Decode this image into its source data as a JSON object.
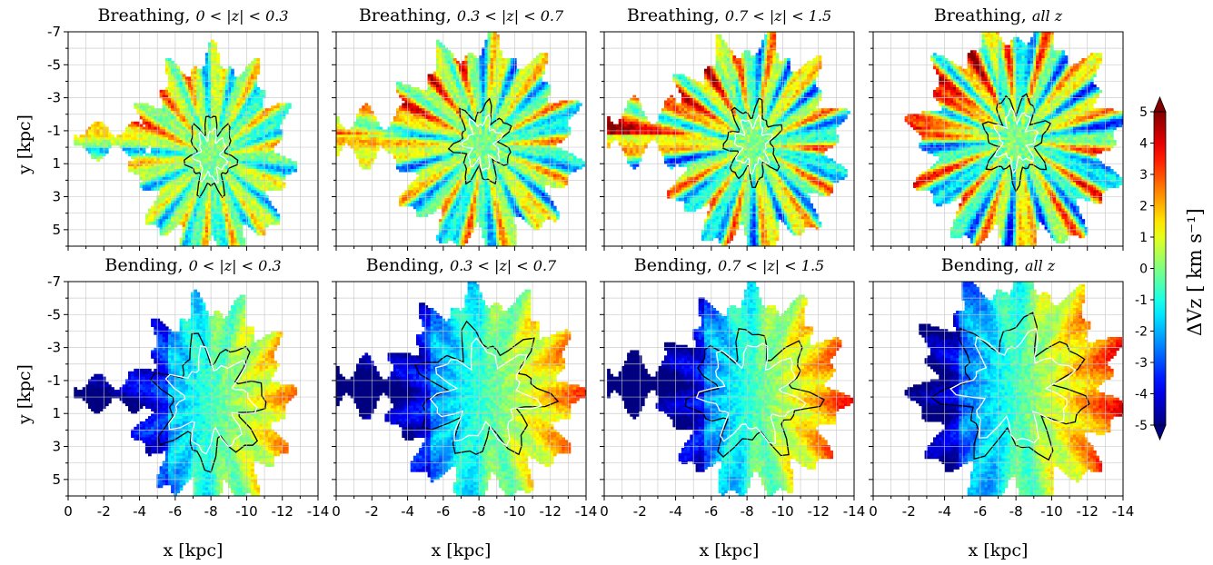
{
  "colors": {
    "jet": [
      "#00007f",
      "#0000ff",
      "#007fff",
      "#00ffff",
      "#7fff7f",
      "#ffff00",
      "#ff7f00",
      "#ff0000",
      "#7f0000"
    ],
    "grid": "#c8c8c8",
    "contour_dark": "#000000",
    "contour_light": "#ffffff"
  },
  "chart_data": [
    {
      "type": "heatmap",
      "title": "Breathing, ",
      "title_tex": "0 < |z| < 0.3",
      "xlabel": "",
      "ylabel": "y [kpc]",
      "xlim": [
        0,
        -14
      ],
      "ylim": [
        -7,
        6
      ],
      "extent": {
        "xc": -8,
        "yc": 0.5,
        "rx": 4.1,
        "ry": 5.9,
        "arm": [
          -1,
          0.7,
          1.2
        ]
      },
      "pattern": "breathing",
      "amp": 2.2
    },
    {
      "type": "heatmap",
      "title": "Breathing, ",
      "title_tex": "0.3 < |z| < 0.7",
      "xlabel": "",
      "ylabel": "",
      "xlim": [
        0,
        -14
      ],
      "ylim": [
        -7,
        6
      ],
      "extent": {
        "xc": -8.2,
        "yc": -0.2,
        "rx": 4.9,
        "ry": 5.9,
        "arm": [
          -0.5,
          0.8,
          2.0
        ]
      },
      "pattern": "breathing",
      "amp": 2.8
    },
    {
      "type": "heatmap",
      "title": "Breathing, ",
      "title_tex": "0.7 < |z| < 1.5",
      "xlabel": "",
      "ylabel": "",
      "xlim": [
        0,
        -14
      ],
      "ylim": [
        -7,
        6
      ],
      "extent": {
        "xc": -8.3,
        "yc": -0.2,
        "rx": 4.7,
        "ry": 6.0,
        "arm": [
          -0.8,
          1.2,
          2.2
        ]
      },
      "pattern": "breathing",
      "amp": 3.2
    },
    {
      "type": "heatmap",
      "title": "Breathing, ",
      "title_tex": "all z",
      "xlabel": "",
      "ylabel": "",
      "xlim": [
        0,
        -14
      ],
      "ylim": [
        -7,
        6
      ],
      "extent": {
        "xc": -8.0,
        "yc": -0.5,
        "rx": 5.4,
        "ry": 6.5,
        "arm": [
          0,
          0,
          0
        ]
      },
      "pattern": "breathing",
      "amp": 3.6
    },
    {
      "type": "heatmap",
      "title": "Bending, ",
      "title_tex": "0 < |z| < 0.3",
      "xlabel": "x [kpc]",
      "ylabel": "y [kpc]",
      "xlim": [
        0,
        -14
      ],
      "ylim": [
        -7,
        6
      ],
      "extent": {
        "xc": -8,
        "yc": 0.3,
        "rx": 4.1,
        "ry": 5.9,
        "arm": [
          -0.6,
          0.8,
          1.2
        ]
      },
      "pattern": "bending",
      "amp": 2.2
    },
    {
      "type": "heatmap",
      "title": "Bending, ",
      "title_tex": "0.3 < |z| < 0.7",
      "xlabel": "x [kpc]",
      "ylabel": "",
      "xlim": [
        0,
        -14
      ],
      "ylim": [
        -7,
        6
      ],
      "extent": {
        "xc": -8.2,
        "yc": -0.2,
        "rx": 4.9,
        "ry": 5.9,
        "arm": [
          -0.5,
          0.8,
          2.0
        ]
      },
      "pattern": "bending",
      "amp": 2.6
    },
    {
      "type": "heatmap",
      "title": "Bending, ",
      "title_tex": "0.7 < |z| < 1.5",
      "xlabel": "x [kpc]",
      "ylabel": "",
      "xlim": [
        0,
        -14
      ],
      "ylim": [
        -7,
        6
      ],
      "extent": {
        "xc": -8.3,
        "yc": -0.3,
        "rx": 4.7,
        "ry": 5.8,
        "arm": [
          -0.6,
          1.2,
          2.1
        ]
      },
      "pattern": "bending",
      "amp": 2.9
    },
    {
      "type": "heatmap",
      "title": "Bending, ",
      "title_tex": "all z",
      "xlabel": "x [kpc]",
      "ylabel": "",
      "xlim": [
        0,
        -14
      ],
      "ylim": [
        -7,
        6
      ],
      "extent": {
        "xc": -8.0,
        "yc": -0.5,
        "rx": 5.4,
        "ry": 6.5,
        "arm": [
          0,
          0,
          0
        ]
      },
      "pattern": "bending",
      "amp": 3.3
    }
  ],
  "axes": {
    "x_ticks": [
      0,
      -2,
      -4,
      -6,
      -8,
      -10,
      -12,
      -14
    ],
    "y_ticks": [
      -7,
      -5,
      -3,
      -1,
      1,
      3,
      5
    ],
    "grid": true
  },
  "colorbar": {
    "label": "ΔVz [ km s⁻¹]",
    "range": [
      -5,
      5
    ],
    "ticks": [
      5,
      4,
      3,
      2,
      1,
      0,
      -1,
      -2,
      -3,
      -4,
      -5
    ],
    "extend": "both",
    "colormap": "jet"
  }
}
